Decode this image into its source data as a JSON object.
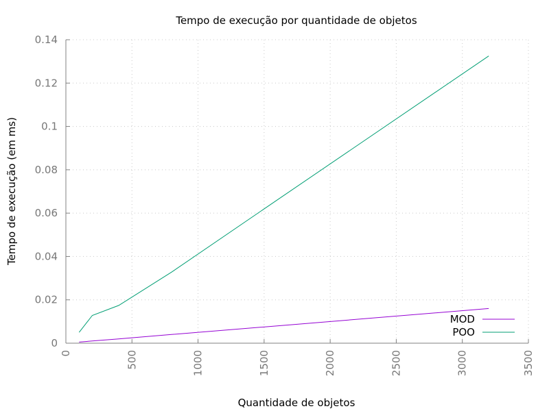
{
  "chart_data": {
    "type": "line",
    "title": "Tempo de execução por quantidade de objetos",
    "xlabel": "Quantidade de objetos",
    "ylabel": "Tempo de execução (em ms)",
    "xlim": [
      0,
      3500
    ],
    "ylim": [
      0,
      0.14
    ],
    "xticks": [
      0,
      500,
      1000,
      1500,
      2000,
      2500,
      3000,
      3500
    ],
    "yticks": [
      0,
      0.02,
      0.04,
      0.06,
      0.08,
      0.1,
      0.12,
      0.14
    ],
    "xtick_labels": [
      "0",
      "500",
      "1000",
      "1500",
      "2000",
      "2500",
      "3000",
      "3500"
    ],
    "ytick_labels": [
      "0",
      "0.02",
      "0.04",
      "0.06",
      "0.08",
      "0.1",
      "0.12",
      "0.14"
    ],
    "grid": true,
    "legend_position": "bottom-right",
    "series": [
      {
        "name": "MOD",
        "color": "#9400d3",
        "x": [
          100,
          200,
          400,
          800,
          1600,
          3200
        ],
        "y": [
          0.0005,
          0.001,
          0.002,
          0.004,
          0.008,
          0.016
        ]
      },
      {
        "name": "POO",
        "color": "#009e73",
        "x": [
          100,
          200,
          400,
          800,
          1600,
          3200
        ],
        "y": [
          0.005,
          0.0128,
          0.0174,
          0.0328,
          0.0661,
          0.1325
        ]
      }
    ]
  }
}
